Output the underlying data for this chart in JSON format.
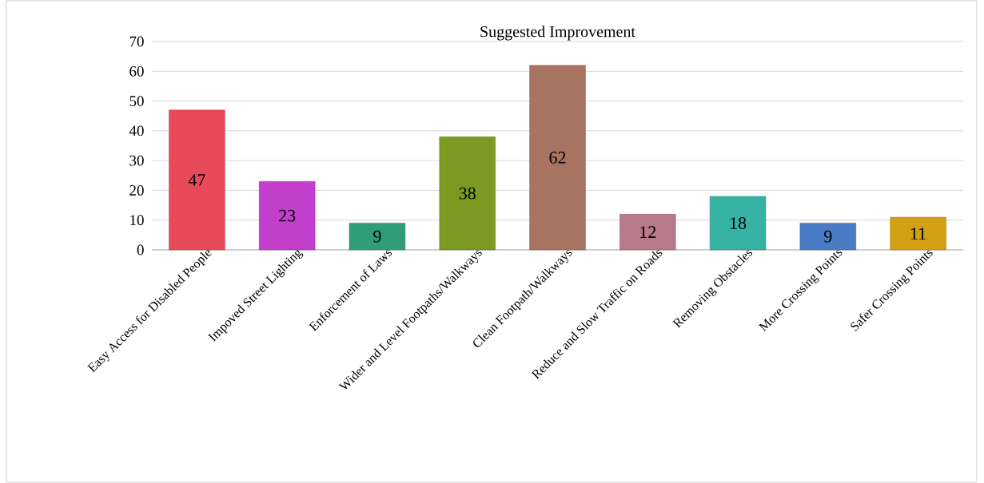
{
  "chart_data": {
    "type": "bar",
    "title": "Suggested Improvement",
    "categories": [
      "Easy Access for Disabled People",
      "Impoved Street Lighting",
      "Enforcement of Laws",
      "Wider and Level Footpaths/Walkways",
      "Clean Footpath/Walkways",
      "Reduce and Slow Traffic on Roads",
      "Removing Obstacles",
      "More Crossing Points",
      "Safer Crossing Points"
    ],
    "values": [
      47,
      23,
      9,
      38,
      62,
      12,
      18,
      9,
      11
    ],
    "colors": [
      "#e84a5a",
      "#c23fcc",
      "#2f9e78",
      "#7a9a22",
      "#a87462",
      "#b67a8a",
      "#35b2a2",
      "#4a7cc6",
      "#d2a012"
    ],
    "ylim": [
      0,
      70
    ],
    "yticks": [
      0,
      10,
      20,
      30,
      40,
      50,
      60,
      70
    ],
    "grid": "y",
    "data_labels": true
  }
}
